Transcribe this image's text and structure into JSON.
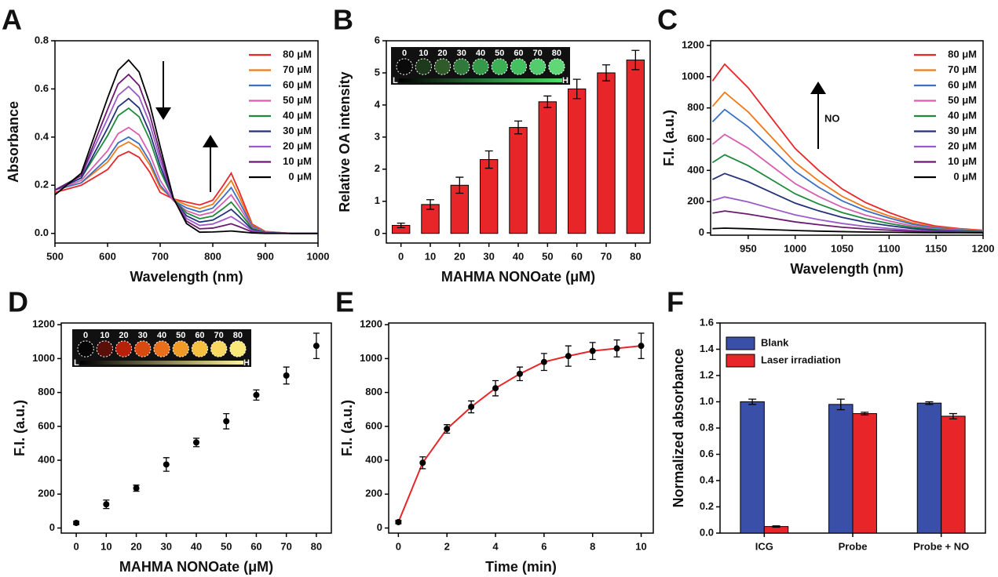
{
  "chart_data": [
    {
      "panel": "A",
      "type": "line",
      "xlabel": "Wavelength (nm)",
      "ylabel": "Absorbance",
      "x": [
        500,
        550,
        600,
        620,
        640,
        660,
        680,
        700,
        725,
        750,
        775,
        800,
        820,
        835,
        850,
        875,
        900,
        950,
        1000
      ],
      "xlim": [
        500,
        1000
      ],
      "xticks": [
        500,
        600,
        700,
        800,
        900,
        1000
      ],
      "ylim": [
        -0.04,
        0.8
      ],
      "yticks": [
        {
          "value": 0,
          "label": "0.0"
        },
        0.2,
        0.4,
        0.6,
        0.8
      ],
      "legend": "upper right",
      "series": [
        {
          "name": "80 μM",
          "color": "#e8262a",
          "values": [
            0.17,
            0.2,
            0.265,
            0.32,
            0.34,
            0.316,
            0.255,
            0.17,
            0.143,
            0.13,
            0.118,
            0.138,
            0.2,
            0.25,
            0.175,
            0.038,
            0.008,
            0,
            0
          ]
        },
        {
          "name": "70 μM",
          "color": "#f07a1a",
          "values": [
            0.18,
            0.21,
            0.296,
            0.357,
            0.38,
            0.353,
            0.285,
            0.19,
            0.142,
            0.118,
            0.103,
            0.121,
            0.176,
            0.22,
            0.154,
            0.033,
            0.007,
            0,
            0
          ]
        },
        {
          "name": "60 μM",
          "color": "#3b6fc0",
          "values": [
            0.18,
            0.21,
            0.312,
            0.376,
            0.4,
            0.372,
            0.3,
            0.2,
            0.137,
            0.106,
            0.089,
            0.105,
            0.152,
            0.19,
            0.133,
            0.029,
            0.006,
            0,
            0
          ]
        },
        {
          "name": "50 μM",
          "color": "#d65fb0",
          "values": [
            0.18,
            0.22,
            0.343,
            0.414,
            0.44,
            0.409,
            0.33,
            0.22,
            0.136,
            0.094,
            0.075,
            0.088,
            0.128,
            0.16,
            0.112,
            0.024,
            0.005,
            0,
            0
          ]
        },
        {
          "name": "40 μM",
          "color": "#1f8a3c",
          "values": [
            0.18,
            0.23,
            0.406,
            0.489,
            0.52,
            0.484,
            0.39,
            0.26,
            0.143,
            0.085,
            0.061,
            0.072,
            0.104,
            0.13,
            0.091,
            0.02,
            0.004,
            0,
            0
          ]
        },
        {
          "name": "30 μM",
          "color": "#23327a",
          "values": [
            0.18,
            0.23,
            0.437,
            0.526,
            0.56,
            0.521,
            0.42,
            0.28,
            0.142,
            0.073,
            0.047,
            0.055,
            0.08,
            0.1,
            0.07,
            0.015,
            0.003,
            0,
            0
          ]
        },
        {
          "name": "20 μM",
          "color": "#9b59c9",
          "values": [
            0.18,
            0.24,
            0.476,
            0.573,
            0.61,
            0.567,
            0.458,
            0.305,
            0.143,
            0.062,
            0.033,
            0.039,
            0.056,
            0.07,
            0.049,
            0.011,
            0.002,
            0,
            0
          ]
        },
        {
          "name": "10 μM",
          "color": "#6a1a6e",
          "values": [
            0.18,
            0.24,
            0.515,
            0.62,
            0.66,
            0.614,
            0.495,
            0.33,
            0.144,
            0.051,
            0.019,
            0.022,
            0.032,
            0.04,
            0.028,
            0.006,
            0.001,
            0,
            0
          ]
        },
        {
          "name": "0 μM",
          "color": "#000000",
          "values": [
            0.16,
            0.25,
            0.562,
            0.677,
            0.72,
            0.67,
            0.54,
            0.36,
            0.147,
            0.041,
            0.005,
            0.006,
            0.008,
            0.01,
            0.007,
            0.002,
            0,
            0,
            0
          ]
        }
      ]
    },
    {
      "panel": "B",
      "type": "bar",
      "xlabel": "MAHMA NONOate (μM)",
      "ylabel": "Relative OA intensity",
      "categories": [
        "0",
        "10",
        "20",
        "30",
        "40",
        "50",
        "60",
        "70",
        "80"
      ],
      "values": [
        0.25,
        0.9,
        1.5,
        2.3,
        3.3,
        4.1,
        4.5,
        5.0,
        5.4
      ],
      "errors": [
        0.07,
        0.15,
        0.25,
        0.27,
        0.2,
        0.18,
        0.3,
        0.25,
        0.3
      ],
      "color": "#e8262a",
      "ylim": [
        -0.3,
        6
      ],
      "yticks": [
        0,
        1,
        2,
        3,
        4,
        5,
        6
      ],
      "inset": {
        "labels": [
          "0",
          "10",
          "20",
          "30",
          "40",
          "50",
          "60",
          "70",
          "80"
        ],
        "colors": [
          "#0a0a0a",
          "#1d3a1d",
          "#2f5a2a",
          "#2f7a3a",
          "#35994a",
          "#3cb055",
          "#45c060",
          "#52cc6c",
          "#60d878"
        ],
        "low": "L",
        "high": "H",
        "ramp": [
          "#000000",
          "#4ee06a"
        ]
      }
    },
    {
      "panel": "C",
      "type": "line",
      "xlabel": "Wavelength (nm)",
      "ylabel": "F.I. (a.u.)",
      "annotation": "NO",
      "x": [
        912,
        925,
        950,
        975,
        1000,
        1025,
        1050,
        1075,
        1100,
        1125,
        1150,
        1175,
        1200
      ],
      "xlim": [
        910,
        1200
      ],
      "xticks": [
        950,
        1000,
        1050,
        1100,
        1150,
        1200
      ],
      "ylim": [
        -15,
        1230
      ],
      "yticks": [
        0,
        200,
        400,
        600,
        800,
        1000,
        1200
      ],
      "legend": "upper right",
      "series": [
        {
          "name": "80 μM",
          "color": "#e8262a",
          "values": [
            972,
            1080,
            929,
            734,
            540,
            400,
            281,
            194,
            130,
            76,
            43,
            27,
            16
          ]
        },
        {
          "name": "70 μM",
          "color": "#f07a1a",
          "values": [
            810,
            900,
            774,
            612,
            450,
            333,
            234,
            162,
            108,
            63,
            36,
            23,
            14
          ]
        },
        {
          "name": "60 μM",
          "color": "#3b6fc0",
          "values": [
            711,
            790,
            679,
            537,
            395,
            292,
            205,
            142,
            95,
            55,
            32,
            20,
            12
          ]
        },
        {
          "name": "50 μM",
          "color": "#d65fb0",
          "values": [
            567,
            630,
            542,
            428,
            315,
            233,
            164,
            113,
            76,
            44,
            25,
            16,
            9
          ]
        },
        {
          "name": "40 μM",
          "color": "#1f8a3c",
          "values": [
            450,
            500,
            430,
            340,
            250,
            185,
            130,
            90,
            60,
            35,
            20,
            13,
            8
          ]
        },
        {
          "name": "30 μM",
          "color": "#23327a",
          "values": [
            342,
            380,
            327,
            258,
            190,
            141,
            99,
            68,
            46,
            27,
            15,
            10,
            6
          ]
        },
        {
          "name": "20 μM",
          "color": "#9b59c9",
          "values": [
            207,
            230,
            198,
            156,
            115,
            85,
            60,
            41,
            28,
            16,
            9,
            6,
            3
          ]
        },
        {
          "name": "10 μM",
          "color": "#6a1a6e",
          "values": [
            126,
            140,
            120,
            95,
            70,
            52,
            36,
            25,
            17,
            10,
            6,
            4,
            2
          ]
        },
        {
          "name": "0 μM",
          "color": "#000000",
          "values": [
            27,
            30,
            26,
            20,
            15,
            11,
            8,
            5,
            4,
            2,
            1,
            1,
            0
          ]
        }
      ]
    },
    {
      "panel": "D",
      "type": "scatter",
      "xlabel": "MAHMA NONOate (μM)",
      "ylabel": "F.I. (a.u.)",
      "x": [
        0,
        10,
        20,
        30,
        40,
        50,
        60,
        70,
        80
      ],
      "values": [
        30,
        140,
        235,
        375,
        505,
        630,
        785,
        900,
        1075
      ],
      "errors": [
        10,
        25,
        18,
        40,
        25,
        45,
        30,
        50,
        75
      ],
      "color": "#000000",
      "xlim": [
        -5,
        85
      ],
      "xticks": [
        0,
        10,
        20,
        30,
        40,
        50,
        60,
        70,
        80
      ],
      "ylim": [
        -30,
        1210
      ],
      "yticks": [
        0,
        200,
        400,
        600,
        800,
        1000,
        1200
      ],
      "inset": {
        "labels": [
          "0",
          "10",
          "20",
          "30",
          "40",
          "50",
          "60",
          "70",
          "80"
        ],
        "colors": [
          "#050505",
          "#5a1008",
          "#b8200a",
          "#d84a10",
          "#e8701a",
          "#f09a28",
          "#f5c040",
          "#f8d860",
          "#fae878"
        ],
        "low": "L",
        "high": "H",
        "ramp": [
          "#000000",
          "#fff3a0"
        ]
      }
    },
    {
      "panel": "E",
      "type": "scatter",
      "xlabel": "Time (min)",
      "ylabel": "F.I. (a.u.)",
      "x": [
        0,
        1,
        2,
        3,
        4,
        5,
        6,
        7,
        8,
        9,
        10
      ],
      "values": [
        35,
        385,
        585,
        715,
        825,
        910,
        980,
        1015,
        1045,
        1060,
        1075
      ],
      "errors": [
        10,
        35,
        25,
        35,
        45,
        40,
        50,
        60,
        50,
        50,
        75
      ],
      "color": "#000000",
      "line_color": "#e8262a",
      "xlim": [
        -0.4,
        10.5
      ],
      "xticks": [
        0,
        2,
        4,
        6,
        8,
        10
      ],
      "ylim": [
        -30,
        1210
      ],
      "yticks": [
        0,
        200,
        400,
        600,
        800,
        1000,
        1200
      ]
    },
    {
      "panel": "F",
      "type": "bar",
      "xlabel": "",
      "ylabel": "Normalized absorbance",
      "categories": [
        "ICG",
        "Probe",
        "Probe + NO"
      ],
      "legend": "upper left",
      "series": [
        {
          "name": "Blank",
          "color": "#3a4fa8",
          "values": [
            1.0,
            0.98,
            0.99
          ],
          "errors": [
            0.02,
            0.04,
            0.01
          ]
        },
        {
          "name": "Laser irradiation",
          "color": "#e8262a",
          "values": [
            0.05,
            0.91,
            0.89
          ],
          "errors": [
            0.005,
            0.01,
            0.02
          ]
        }
      ],
      "ylim": [
        0,
        1.6
      ],
      "yticks": [
        {
          "value": 0,
          "label": "0.0"
        },
        0.2,
        0.4,
        0.6,
        0.8,
        {
          "value": 1,
          "label": "1.0"
        },
        1.2,
        1.4,
        1.6
      ]
    }
  ]
}
